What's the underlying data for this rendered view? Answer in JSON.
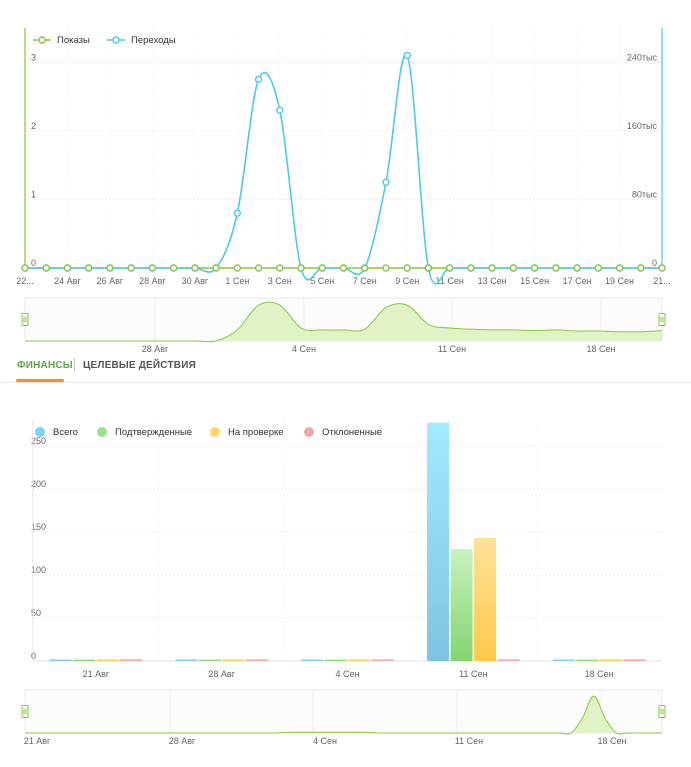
{
  "tabs": {
    "finance": "ФИНАНСЫ",
    "goal_actions": "ЦЕЛЕВЫЕ ДЕЙСТВИЯ"
  },
  "colors": {
    "impressions": "#8cc63f",
    "clicks": "#4fc9e8",
    "total": "#7ad6f0",
    "confirmed": "#9ee08f",
    "pending": "#ffd56b",
    "rejected": "#f3a7a7",
    "tab_active": "#5aa83a",
    "tab_underline": "#f0932b"
  },
  "chart_data": [
    {
      "type": "line",
      "legend": [
        "Показы",
        "Переходы"
      ],
      "legend_position": "top-left",
      "x_tick_labels": [
        "22...",
        "24 Авг",
        "26 Авг",
        "28 Авг",
        "30 Авг",
        "1 Сен",
        "3 Сен",
        "5 Сен",
        "7 Сен",
        "9 Сен",
        "11 Сен",
        "13 Сен",
        "15 Сен",
        "17 Сен",
        "19 Сен",
        "21..."
      ],
      "left_axis": {
        "ticks": [
          "0",
          "1",
          "2",
          "3"
        ],
        "ylim": [
          0,
          3.5
        ]
      },
      "right_axis": {
        "ticks": [
          "0",
          "80тыс",
          "160тыс",
          "240тыс"
        ]
      },
      "grid": true,
      "series": [
        {
          "name": "Показы",
          "values": [
            0,
            0,
            0,
            0,
            0,
            0,
            0,
            0,
            0,
            0,
            0,
            0,
            0,
            0,
            0,
            0,
            0,
            0,
            0,
            0,
            0,
            0,
            0,
            0,
            0,
            0,
            0,
            0,
            0,
            0,
            0
          ]
        },
        {
          "name": "Переходы",
          "values": [
            0,
            0,
            0,
            0,
            0,
            0,
            0,
            0,
            0,
            0,
            0.8,
            2.75,
            2.3,
            0,
            0,
            0,
            0,
            1.25,
            3.1,
            0,
            0,
            0,
            0,
            0,
            0,
            0,
            0,
            0,
            0,
            0,
            0
          ]
        }
      ]
    },
    {
      "type": "area",
      "role": "navigator",
      "x_tick_labels": [
        "28 Авг",
        "4 Сен",
        "11 Сен",
        "18 Сен"
      ],
      "values": [
        0,
        0,
        0,
        0,
        0,
        0,
        0,
        0,
        0,
        0,
        0.3,
        0.97,
        0.97,
        0.35,
        0.3,
        0.3,
        0.32,
        0.9,
        0.97,
        0.45,
        0.35,
        0.32,
        0.3,
        0.3,
        0.28,
        0.3,
        0.27,
        0.27,
        0.25,
        0.25,
        0.28
      ]
    },
    {
      "type": "bar",
      "legend": [
        "Всего",
        "Подтвержденные",
        "На проверке",
        "Отклоненные"
      ],
      "legend_position": "top-left",
      "categories": [
        "21 Авг",
        "28 Авг",
        "4 Сен",
        "11 Сен",
        "18 Сен"
      ],
      "y_ticks": [
        "0",
        "50",
        "100",
        "150",
        "200",
        "250"
      ],
      "ylim": [
        0,
        280
      ],
      "grid": true,
      "series": [
        {
          "name": "Всего",
          "values": [
            2,
            2,
            2,
            277,
            2
          ]
        },
        {
          "name": "Подтвержденные",
          "values": [
            2,
            2,
            2,
            130,
            2
          ]
        },
        {
          "name": "На проверке",
          "values": [
            2,
            2,
            2,
            143,
            2
          ]
        },
        {
          "name": "Отклоненные",
          "values": [
            2,
            2,
            2,
            2,
            2
          ]
        }
      ]
    },
    {
      "type": "area",
      "role": "navigator",
      "x_tick_labels": [
        "21 Авг",
        "28 Авг",
        "4 Сен",
        "11 Сен",
        "18 Сен"
      ],
      "values": [
        0,
        0,
        0,
        0,
        0,
        0,
        0,
        0,
        0,
        0,
        0,
        0,
        0,
        0,
        0,
        0,
        0,
        0,
        0,
        0,
        0,
        0,
        0,
        0.02,
        0.02,
        0.02,
        0.02,
        0.02,
        0.02,
        0.02,
        0.02,
        0,
        0,
        0,
        0,
        0,
        0,
        0,
        0,
        0,
        0,
        0,
        0,
        0,
        0,
        0,
        0,
        0,
        0,
        0.4,
        1,
        0.4,
        0,
        0,
        0,
        0,
        0
      ]
    }
  ]
}
